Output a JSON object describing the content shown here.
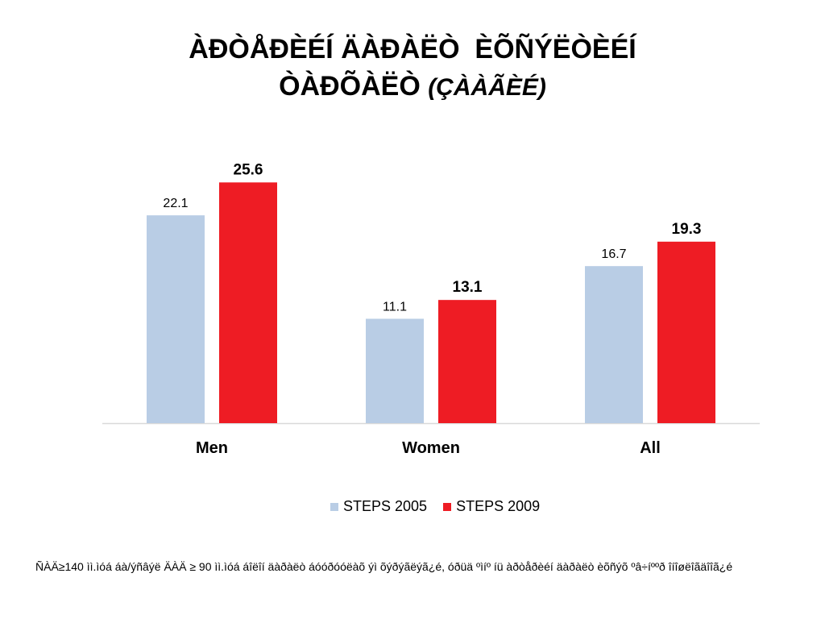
{
  "title": {
    "line1": "ÀÐÒÅÐÈÉÍ ÄÀÐÀËÒ  ÈÕÑÝËÒÈÉÍ",
    "line2_main": "ÒÀÐÕÀËÒ",
    "line2_italic": "(ÇÀÀÃÈÉ)"
  },
  "chart_data": {
    "type": "bar",
    "categories": [
      "Men",
      "Women",
      "All"
    ],
    "series": [
      {
        "name": "STEPS 2005",
        "values": [
          22.1,
          11.1,
          16.7
        ],
        "color": "#b9cde5",
        "label_bold": false
      },
      {
        "name": "STEPS 2009",
        "values": [
          25.6,
          13.1,
          19.3
        ],
        "color": "#ee1c24",
        "label_bold": true
      }
    ],
    "ylim": [
      0,
      30
    ],
    "grid": false,
    "legend_position": "bottom",
    "axis_color": "#d9d9d9"
  },
  "footnote": "ÑÀÄ≥140 ìì.ìóá áà/ýñâýë ÄÀÄ ≥ 90 ìì.ìóá áîëîí äàðàëò áóóðóóëàõ ýì õýðýãëýã¿é, óðüä ºìíº íü àðòåðèéí äàðàëò èõñýõ ºâ÷íººð îíîøëîãäîîã¿é"
}
